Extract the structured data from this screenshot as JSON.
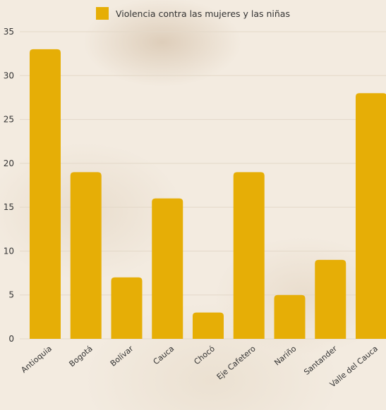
{
  "chart_data": {
    "type": "bar",
    "categories": [
      "Antioquia",
      "Bogotá",
      "Bolívar",
      "Cauca",
      "Chocó",
      "Eje Cafetero",
      "Nariño",
      "Santander",
      "Valle del Cauca"
    ],
    "series": [
      {
        "name": "Violencia contra las mujeres y las niñas",
        "values": [
          33,
          19,
          7,
          16,
          3,
          19,
          5,
          9,
          28
        ],
        "color": "#e6ae06"
      }
    ],
    "ylim": [
      0,
      35
    ],
    "yticks": [
      "0",
      "5",
      "10",
      "15",
      "20",
      "25",
      "30",
      "35"
    ],
    "grid": true,
    "legend": "top-center",
    "xlabel": "",
    "ylabel": ""
  }
}
